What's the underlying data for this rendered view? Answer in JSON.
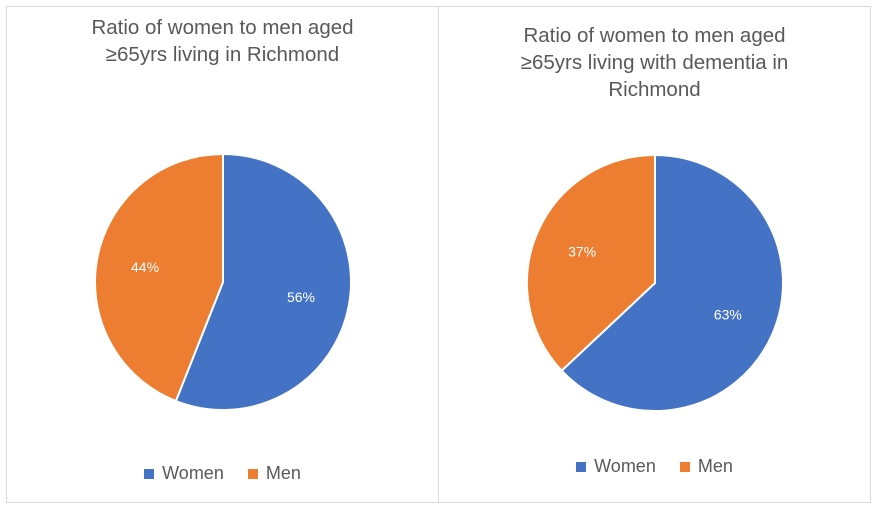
{
  "chart_data": [
    {
      "type": "pie",
      "title": [
        "Ratio of women to men aged",
        "≥65yrs  living in Richmond"
      ],
      "categories": [
        "Women",
        "Men"
      ],
      "values": [
        56,
        44
      ],
      "labels": [
        "56%",
        "44%"
      ],
      "colors": [
        "#4472c4",
        "#ed7d31"
      ],
      "legend": "bottom"
    },
    {
      "type": "pie",
      "title": [
        "Ratio of women to men aged",
        "≥65yrs  living with dementia in",
        "Richmond"
      ],
      "categories": [
        "Women",
        "Men"
      ],
      "values": [
        63,
        37
      ],
      "labels": [
        "63%",
        "37%"
      ],
      "colors": [
        "#4472c4",
        "#ed7d31"
      ],
      "legend": "bottom"
    }
  ]
}
